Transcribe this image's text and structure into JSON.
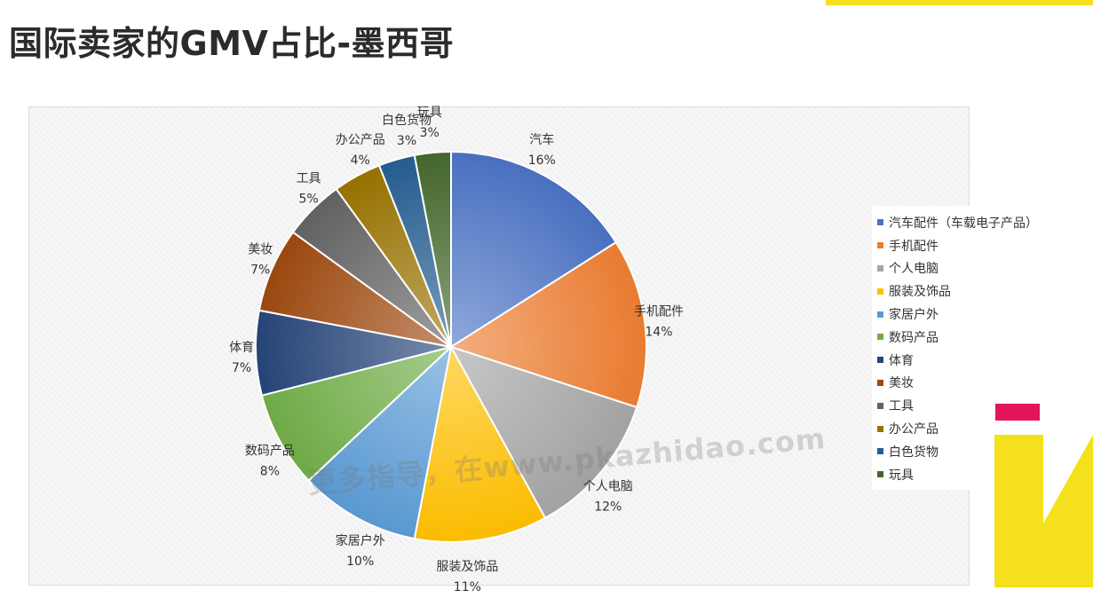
{
  "page": {
    "title": "国际卖家的GMV占比-墨西哥"
  },
  "watermark": "更多指导，在www.pkazhidao.com",
  "chart_data": {
    "type": "pie",
    "title": "",
    "start_angle_deg": 0,
    "direction": "clockwise",
    "legend_position": "right",
    "slices": [
      {
        "label": "汽车",
        "legend": "汽车配件（车载电子产品）",
        "value": 16,
        "percent_label": "16%",
        "color": "#4a72c4"
      },
      {
        "label": "手机配件",
        "legend": "手机配件",
        "value": 14,
        "percent_label": "14%",
        "color": "#ed7d31"
      },
      {
        "label": "个人电脑",
        "legend": "个人电脑",
        "value": 12,
        "percent_label": "12%",
        "color": "#a5a5a5"
      },
      {
        "label": "服装及饰品",
        "legend": "服装及饰品",
        "value": 11,
        "percent_label": "11%",
        "color": "#ffc000"
      },
      {
        "label": "家居户外",
        "legend": "家居户外",
        "value": 10,
        "percent_label": "10%",
        "color": "#5b9bd5"
      },
      {
        "label": "数码产品",
        "legend": "数码产品",
        "value": 8,
        "percent_label": "8%",
        "color": "#70ad47"
      },
      {
        "label": "体育",
        "legend": "体育",
        "value": 7,
        "percent_label": "7%",
        "color": "#264478"
      },
      {
        "label": "美妆",
        "legend": "美妆",
        "value": 7,
        "percent_label": "7%",
        "color": "#9e480e"
      },
      {
        "label": "工具",
        "legend": "工具",
        "value": 5,
        "percent_label": "5%",
        "color": "#636363"
      },
      {
        "label": "办公产品",
        "legend": "办公产品",
        "value": 4,
        "percent_label": "4%",
        "color": "#997300"
      },
      {
        "label": "白色货物",
        "legend": "白色货物",
        "value": 3,
        "percent_label": "3%",
        "color": "#255e91"
      },
      {
        "label": "玩具",
        "legend": "玩具",
        "value": 3,
        "percent_label": "3%",
        "color": "#43682b"
      }
    ]
  }
}
